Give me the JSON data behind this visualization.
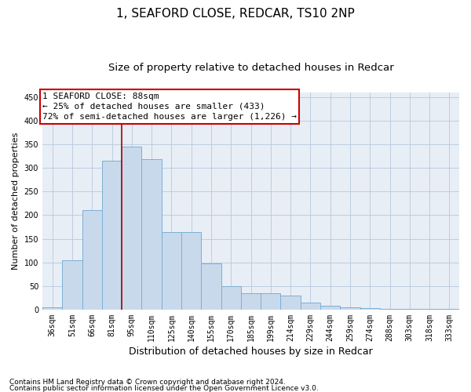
{
  "title": "1, SEAFORD CLOSE, REDCAR, TS10 2NP",
  "subtitle": "Size of property relative to detached houses in Redcar",
  "xlabel": "Distribution of detached houses by size in Redcar",
  "ylabel": "Number of detached properties",
  "categories": [
    "36sqm",
    "51sqm",
    "66sqm",
    "81sqm",
    "95sqm",
    "110sqm",
    "125sqm",
    "140sqm",
    "155sqm",
    "170sqm",
    "185sqm",
    "199sqm",
    "214sqm",
    "229sqm",
    "244sqm",
    "259sqm",
    "274sqm",
    "288sqm",
    "303sqm",
    "318sqm",
    "333sqm"
  ],
  "values": [
    5,
    105,
    210,
    315,
    345,
    318,
    165,
    165,
    97,
    50,
    35,
    35,
    29,
    15,
    9,
    5,
    4,
    2,
    1,
    1,
    1
  ],
  "bar_color": "#c9d9ec",
  "bar_edge_color": "#7bafd4",
  "plot_bg_color": "#e8eef5",
  "background_color": "#ffffff",
  "grid_color": "#b8c8dc",
  "annotation_box_text": "1 SEAFORD CLOSE: 88sqm\n← 25% of detached houses are smaller (433)\n72% of semi-detached houses are larger (1,226) →",
  "annotation_box_color": "#cc0000",
  "vline_color": "#aa0000",
  "vline_pos": 3.5,
  "ylim": [
    0,
    460
  ],
  "yticks": [
    0,
    50,
    100,
    150,
    200,
    250,
    300,
    350,
    400,
    450
  ],
  "footer_line1": "Contains HM Land Registry data © Crown copyright and database right 2024.",
  "footer_line2": "Contains public sector information licensed under the Open Government Licence v3.0.",
  "title_fontsize": 11,
  "subtitle_fontsize": 9.5,
  "xlabel_fontsize": 9,
  "ylabel_fontsize": 8,
  "tick_fontsize": 7,
  "annotation_fontsize": 8,
  "footer_fontsize": 6.5
}
